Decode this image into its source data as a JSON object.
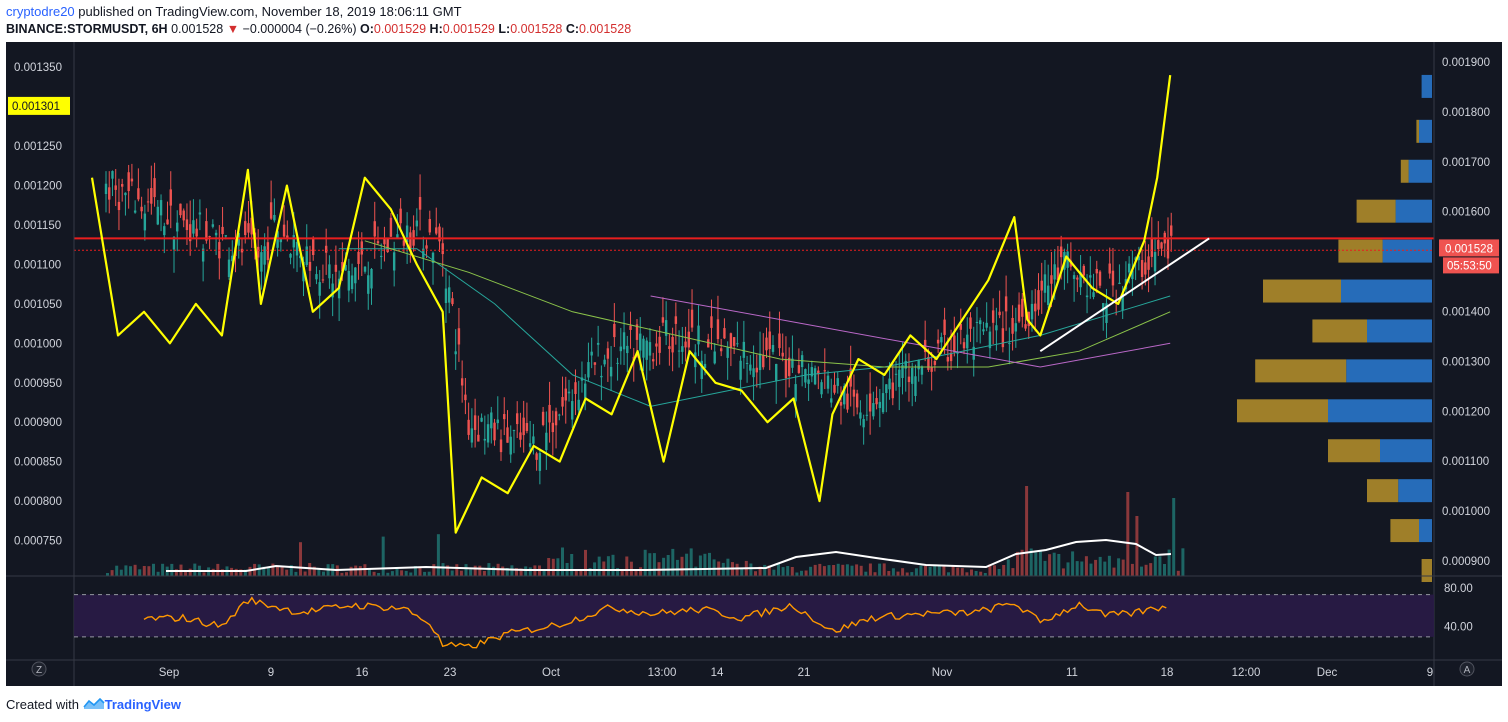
{
  "header": {
    "user": "cryptodre20",
    "published": "published on TradingView.com, November 18, 2019 18:06:11 GMT",
    "symbol": "BINANCE:STORMUSDT, 6H",
    "price": "0.001528",
    "change_arrow": "▼",
    "change": "−0.000004 (−0.26%)",
    "o_label": "O:",
    "o_value": "0.001529",
    "h_label": "H:",
    "h_value": "0.001529",
    "l_label": "L:",
    "l_value": "0.001528",
    "c_label": "C:",
    "c_value": "0.001528"
  },
  "footer": {
    "created": "Created with",
    "brand": "TradingView"
  },
  "buttons": {
    "left_scale": "Z",
    "right_scale": "A"
  },
  "colors": {
    "background": "#131722",
    "up": "#26a69a",
    "down": "#ef5350",
    "overlay": "#ffff00",
    "resistance": "#e91e1e",
    "trendline": "#ffffff",
    "rsi": "#ff9800",
    "rsi_band": "#2a1b47",
    "vp_up": "#2a7bd3",
    "vp_down": "#b8922a"
  },
  "chart_data": {
    "type": "line",
    "left_axis": {
      "ticks": [
        "0.001350",
        "0.001250",
        "0.001200",
        "0.001150",
        "0.001100",
        "0.001050",
        "0.001000",
        "0.000950",
        "0.000900",
        "0.000850",
        "0.000800",
        "0.000750"
      ],
      "range": [
        0.000705,
        0.001382
      ],
      "marker": "0.001301"
    },
    "right_axis": {
      "ticks": [
        "0.001900",
        "0.001800",
        "0.001700",
        "0.001600",
        "0.001400",
        "0.001300",
        "0.001200",
        "0.001100",
        "0.001000",
        "0.000900"
      ],
      "range": [
        0.00087,
        0.00194
      ],
      "price_label": "0.001528",
      "countdown": "05:53:50"
    },
    "x_ticks": [
      "Sep",
      "9",
      "16",
      "23",
      "Oct",
      "13:00",
      "14",
      "21",
      "Nov",
      "11",
      "18",
      "12:00",
      "Dec",
      "9"
    ],
    "x_range": [
      "2019-08-28",
      "2019-12-09"
    ],
    "resistance_level": 0.001133,
    "last_price_level": 0.001118,
    "trendline": [
      [
        "2019-11-09",
        0.00099
      ],
      [
        "2019-11-22",
        0.001133
      ]
    ],
    "series": [
      {
        "role": "overlay",
        "color": "#ffff00",
        "x": [
          "2019-08-28",
          "2019-08-30",
          "2019-09-01",
          "2019-09-03",
          "2019-09-05",
          "2019-09-07",
          "2019-09-09",
          "2019-09-10",
          "2019-09-12",
          "2019-09-14",
          "2019-09-16",
          "2019-09-18",
          "2019-09-20",
          "2019-09-22",
          "2019-09-24",
          "2019-09-25",
          "2019-09-27",
          "2019-09-29",
          "2019-10-01",
          "2019-10-03",
          "2019-10-05",
          "2019-10-07",
          "2019-10-09",
          "2019-10-11",
          "2019-10-13",
          "2019-10-15",
          "2019-10-17",
          "2019-10-19",
          "2019-10-21",
          "2019-10-23",
          "2019-10-24",
          "2019-10-26",
          "2019-10-28",
          "2019-10-30",
          "2019-11-01",
          "2019-11-03",
          "2019-11-05",
          "2019-11-07",
          "2019-11-08",
          "2019-11-09",
          "2019-11-11",
          "2019-11-13",
          "2019-11-15",
          "2019-11-17",
          "2019-11-18",
          "2019-11-19"
        ],
        "values": [
          0.00121,
          0.00101,
          0.00104,
          0.001,
          0.00105,
          0.00101,
          0.00122,
          0.00105,
          0.0012,
          0.00104,
          0.00107,
          0.00121,
          0.00117,
          0.0011,
          0.00104,
          0.00076,
          0.00083,
          0.00081,
          0.00087,
          0.00085,
          0.00093,
          0.00091,
          0.00099,
          0.00085,
          0.00099,
          0.00095,
          0.00094,
          0.0009,
          0.00093,
          0.0008,
          0.00091,
          0.00098,
          0.00096,
          0.00101,
          0.00098,
          0.00103,
          0.00108,
          0.00116,
          0.00103,
          0.00101,
          0.00111,
          0.00107,
          0.00105,
          0.00113,
          0.00121,
          0.00134
        ]
      },
      {
        "role": "moving-average",
        "color": "#26a69a",
        "x": [
          "2019-09-16",
          "2019-09-22",
          "2019-09-28",
          "2019-10-04",
          "2019-10-10",
          "2019-10-16",
          "2019-10-22",
          "2019-10-28",
          "2019-11-03",
          "2019-11-09",
          "2019-11-15",
          "2019-11-19"
        ],
        "values": [
          0.00112,
          0.00112,
          0.00105,
          0.00096,
          0.00092,
          0.00094,
          0.00096,
          0.00097,
          0.00099,
          0.00101,
          0.00104,
          0.00106
        ]
      },
      {
        "role": "moving-average",
        "color": "#8bc34a",
        "x": [
          "2019-09-18",
          "2019-09-26",
          "2019-10-04",
          "2019-10-12",
          "2019-10-20",
          "2019-10-28",
          "2019-11-05",
          "2019-11-12",
          "2019-11-19"
        ],
        "values": [
          0.00113,
          0.00109,
          0.00104,
          0.00101,
          0.00098,
          0.00097,
          0.00097,
          0.00099,
          0.00104
        ]
      },
      {
        "role": "moving-average",
        "color": "#ba68c8",
        "x": [
          "2019-10-10",
          "2019-10-20",
          "2019-10-30",
          "2019-11-09",
          "2019-11-19"
        ],
        "values": [
          0.00106,
          0.00103,
          0.001,
          0.00097,
          0.001
        ]
      }
    ],
    "volume_profile": [
      {
        "level": 0.00185,
        "up": 8,
        "down": 0
      },
      {
        "level": 0.00176,
        "up": 10,
        "down": 2
      },
      {
        "level": 0.00168,
        "up": 18,
        "down": 6
      },
      {
        "level": 0.0016,
        "up": 28,
        "down": 30
      },
      {
        "level": 0.00152,
        "up": 38,
        "down": 34
      },
      {
        "level": 0.00144,
        "up": 70,
        "down": 60
      },
      {
        "level": 0.00136,
        "up": 50,
        "down": 42
      },
      {
        "level": 0.00128,
        "up": 66,
        "down": 70
      },
      {
        "level": 0.0012,
        "up": 80,
        "down": 70
      },
      {
        "level": 0.00112,
        "up": 40,
        "down": 40
      },
      {
        "level": 0.00104,
        "up": 26,
        "down": 24
      },
      {
        "level": 0.00096,
        "up": 10,
        "down": 22
      },
      {
        "level": 0.00088,
        "up": 0,
        "down": 8
      }
    ],
    "rsi": {
      "ticks": [
        "80.00",
        "40.00"
      ],
      "upper": 70,
      "lower": 30,
      "x": [
        "2019-09-01",
        "2019-09-04",
        "2019-09-07",
        "2019-09-09",
        "2019-09-13",
        "2019-09-17",
        "2019-09-21",
        "2019-09-23",
        "2019-09-24",
        "2019-09-26",
        "2019-09-29",
        "2019-10-03",
        "2019-10-07",
        "2019-10-10",
        "2019-10-14",
        "2019-10-17",
        "2019-10-21",
        "2019-10-24",
        "2019-10-27",
        "2019-10-31",
        "2019-11-04",
        "2019-11-07",
        "2019-11-09",
        "2019-11-12",
        "2019-11-14",
        "2019-11-16",
        "2019-11-19"
      ],
      "values": [
        47,
        48,
        40,
        65,
        53,
        60,
        57,
        43,
        22,
        20,
        33,
        42,
        58,
        52,
        56,
        48,
        60,
        35,
        48,
        52,
        53,
        62,
        44,
        61,
        50,
        52,
        60
      ]
    }
  }
}
